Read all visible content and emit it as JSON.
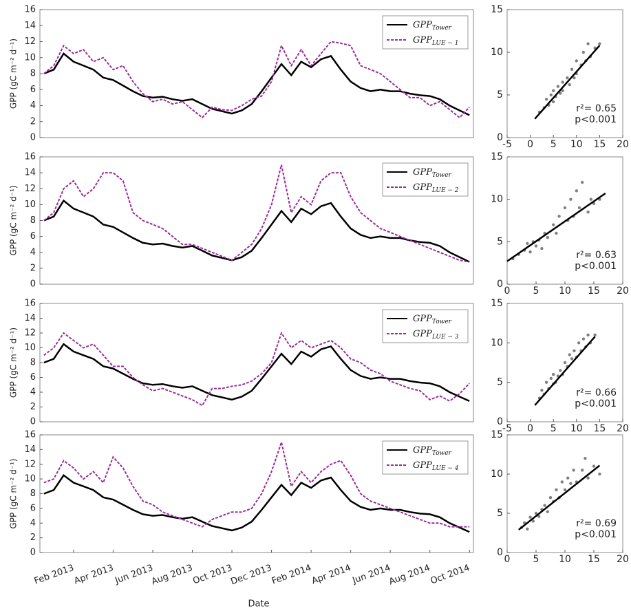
{
  "chart_data": [
    {
      "type": "line",
      "ylabel": "GPP (gC m⁻² d⁻¹)",
      "x": [
        -0.5,
        0,
        0.5,
        1,
        1.5,
        2,
        2.5,
        3,
        3.5,
        4,
        4.5,
        5,
        5.5,
        6,
        6.5,
        7,
        7.5,
        8,
        8.5,
        9,
        9.5,
        10,
        10.5,
        11,
        11.5,
        12,
        12.5,
        13,
        13.5,
        14,
        14.5,
        15,
        15.5,
        16,
        16.5,
        17,
        17.5,
        18,
        18.5,
        19,
        19.5,
        20,
        20.5,
        21
      ],
      "xlim": [
        -0.7,
        21.2
      ],
      "ylim": [
        0,
        16
      ],
      "yticks": [
        0,
        2,
        4,
        6,
        8,
        10,
        12,
        14,
        16
      ],
      "series": [
        {
          "name": "GPP",
          "name_sub": "Tower",
          "color": "#000000",
          "style": "solid",
          "values": [
            8,
            8.5,
            10.5,
            9.5,
            9,
            8.5,
            7.5,
            7.2,
            6.5,
            5.8,
            5.2,
            5,
            5.1,
            4.8,
            4.6,
            4.8,
            4.2,
            3.6,
            3.3,
            3,
            3.4,
            4.2,
            5.8,
            7.5,
            9.2,
            7.8,
            9.5,
            8.8,
            9.8,
            10.2,
            8.5,
            7,
            6.2,
            5.8,
            6,
            5.8,
            5.8,
            5.5,
            5.3,
            5.2,
            4.8,
            4,
            3.4,
            2.8
          ]
        },
        {
          "name": "GPP",
          "name_sub": "LUE − 1",
          "color": "#9b2a9b",
          "style": "dashed",
          "values": [
            8,
            9,
            11.5,
            10.5,
            11,
            9.5,
            10,
            8.5,
            9,
            7,
            5.5,
            4.5,
            4.8,
            4.2,
            4.5,
            3.5,
            2.5,
            3.8,
            3.5,
            3.4,
            4,
            4.8,
            5.2,
            7,
            11.5,
            9,
            11,
            9,
            10.5,
            12,
            11.8,
            11.5,
            9,
            8.5,
            8,
            7,
            6,
            5,
            5,
            4,
            4.5,
            3.5,
            2.5,
            3.8
          ]
        }
      ]
    },
    {
      "type": "scatter",
      "xlim": [
        -5,
        20
      ],
      "ylim": [
        0,
        15
      ],
      "xticks": [
        -5,
        0,
        5,
        10,
        15,
        20
      ],
      "yticks": [
        0,
        5,
        10,
        15
      ],
      "color": "#808080",
      "x": [
        2,
        3,
        3.5,
        4,
        4.5,
        5,
        5,
        5.5,
        6,
        6.5,
        7,
        7,
        8,
        8.5,
        9,
        9.5,
        10,
        10,
        11,
        11.5,
        12,
        12.5,
        13,
        14,
        15
      ],
      "y": [
        3,
        3.5,
        4.5,
        3.8,
        5,
        4.2,
        5.5,
        4.8,
        6,
        5.2,
        6.5,
        5.5,
        7,
        6.2,
        8,
        7,
        9,
        7.5,
        8.5,
        10,
        9,
        11,
        9.5,
        10.5,
        11
      ],
      "fit_line": {
        "x": [
          1,
          15
        ],
        "y": [
          2.2,
          10.8
        ]
      },
      "annotations": [
        "r²= 0.65",
        "p<0.001"
      ]
    },
    {
      "type": "line",
      "ylabel": "GPP (gC m⁻² d⁻¹)",
      "x": [
        -0.5,
        0,
        0.5,
        1,
        1.5,
        2,
        2.5,
        3,
        3.5,
        4,
        4.5,
        5,
        5.5,
        6,
        6.5,
        7,
        7.5,
        8,
        8.5,
        9,
        9.5,
        10,
        10.5,
        11,
        11.5,
        12,
        12.5,
        13,
        13.5,
        14,
        14.5,
        15,
        15.5,
        16,
        16.5,
        17,
        17.5,
        18,
        18.5,
        19,
        19.5,
        20,
        20.5,
        21
      ],
      "xlim": [
        -0.7,
        21.2
      ],
      "ylim": [
        0,
        16
      ],
      "yticks": [
        0,
        2,
        4,
        6,
        8,
        10,
        12,
        14,
        16
      ],
      "series": [
        {
          "name": "GPP",
          "name_sub": "Tower",
          "color": "#000000",
          "style": "solid",
          "values": [
            8,
            8.5,
            10.5,
            9.5,
            9,
            8.5,
            7.5,
            7.2,
            6.5,
            5.8,
            5.2,
            5,
            5.1,
            4.8,
            4.6,
            4.8,
            4.2,
            3.6,
            3.3,
            3,
            3.4,
            4.2,
            5.8,
            7.5,
            9.2,
            7.8,
            9.5,
            8.8,
            9.8,
            10.2,
            8.5,
            7,
            6.2,
            5.8,
            6,
            5.8,
            5.8,
            5.5,
            5.3,
            5.2,
            4.8,
            4,
            3.4,
            2.8
          ]
        },
        {
          "name": "GPP",
          "name_sub": "LUE − 2",
          "color": "#9b2a9b",
          "style": "dashed",
          "values": [
            8,
            9,
            12,
            13,
            11,
            12,
            14,
            14,
            13,
            9,
            8,
            7.5,
            7,
            6,
            5,
            5,
            4.5,
            4,
            3.5,
            3,
            4,
            5,
            7,
            10,
            15,
            9,
            11,
            10,
            13,
            14,
            14,
            11,
            9,
            8,
            7,
            6.5,
            6,
            5.5,
            5,
            4.5,
            4,
            3.5,
            3,
            2.8
          ]
        }
      ]
    },
    {
      "type": "scatter",
      "xlim": [
        0,
        20
      ],
      "ylim": [
        0,
        15
      ],
      "xticks": [
        0,
        5,
        10,
        15,
        20
      ],
      "yticks": [
        0,
        5,
        10,
        15
      ],
      "color": "#808080",
      "x": [
        1,
        2,
        3,
        3.5,
        4,
        4.5,
        5,
        5.5,
        6,
        6.5,
        7,
        8,
        8.5,
        9,
        10,
        10.5,
        11,
        11.5,
        12,
        12.5,
        13,
        14,
        14.5,
        15,
        16
      ],
      "y": [
        3,
        3.5,
        4,
        4.8,
        3.8,
        5,
        4.5,
        5.2,
        4.2,
        6,
        5.5,
        7,
        6,
        8,
        9,
        7.5,
        10,
        8,
        11,
        9,
        12,
        8.5,
        10,
        9.5,
        10
      ],
      "fit_line": {
        "x": [
          0,
          17
        ],
        "y": [
          2.7,
          10.7
        ]
      },
      "annotations": [
        "r²= 0.63",
        "p<0.001"
      ]
    },
    {
      "type": "line",
      "ylabel": "GPP (gC m⁻² d⁻¹)",
      "x": [
        -0.5,
        0,
        0.5,
        1,
        1.5,
        2,
        2.5,
        3,
        3.5,
        4,
        4.5,
        5,
        5.5,
        6,
        6.5,
        7,
        7.5,
        8,
        8.5,
        9,
        9.5,
        10,
        10.5,
        11,
        11.5,
        12,
        12.5,
        13,
        13.5,
        14,
        14.5,
        15,
        15.5,
        16,
        16.5,
        17,
        17.5,
        18,
        18.5,
        19,
        19.5,
        20,
        20.5,
        21
      ],
      "xlim": [
        -0.7,
        21.2
      ],
      "ylim": [
        0,
        16
      ],
      "yticks": [
        0,
        2,
        4,
        6,
        8,
        10,
        12,
        14,
        16
      ],
      "series": [
        {
          "name": "GPP",
          "name_sub": "Tower",
          "color": "#000000",
          "style": "solid",
          "values": [
            8,
            8.5,
            10.5,
            9.5,
            9,
            8.5,
            7.5,
            7.2,
            6.5,
            5.8,
            5.2,
            5,
            5.1,
            4.8,
            4.6,
            4.8,
            4.2,
            3.6,
            3.3,
            3,
            3.4,
            4.2,
            5.8,
            7.5,
            9.2,
            7.8,
            9.5,
            8.8,
            9.8,
            10.2,
            8.5,
            7,
            6.2,
            5.8,
            6,
            5.8,
            5.8,
            5.5,
            5.3,
            5.2,
            4.8,
            4,
            3.4,
            2.8
          ]
        },
        {
          "name": "GPP",
          "name_sub": "LUE − 3",
          "color": "#9b2a9b",
          "style": "dashed",
          "values": [
            9,
            10,
            12,
            11,
            10,
            10.5,
            9,
            7.5,
            7.5,
            6,
            5,
            4.2,
            4.5,
            4,
            3.5,
            3,
            2.2,
            4.5,
            4.5,
            4.8,
            5,
            5.5,
            6.5,
            8,
            12,
            10,
            11,
            10,
            10.5,
            11,
            10,
            8.5,
            8,
            7,
            6.5,
            5.5,
            5,
            4.5,
            4.2,
            3,
            3.5,
            2.8,
            3.8,
            5.2
          ]
        }
      ]
    },
    {
      "type": "scatter",
      "xlim": [
        -5,
        20
      ],
      "ylim": [
        0,
        15
      ],
      "xticks": [
        -5,
        0,
        5,
        10,
        15,
        20
      ],
      "yticks": [
        0,
        5,
        10,
        15
      ],
      "color": "#808080",
      "x": [
        2,
        2.5,
        3,
        3.5,
        4,
        4.5,
        5,
        5,
        5.5,
        6,
        6.5,
        7,
        7.5,
        8,
        8.5,
        9,
        9.5,
        10,
        10.5,
        11,
        11.5,
        12,
        12.5,
        13,
        14
      ],
      "y": [
        3,
        4,
        3.5,
        5,
        4.2,
        5.5,
        4.8,
        6,
        5,
        5.8,
        6.5,
        6,
        7.5,
        7,
        8.5,
        8,
        9,
        8.2,
        10,
        9,
        10.5,
        9.5,
        11,
        10,
        11
      ],
      "fit_line": {
        "x": [
          1,
          14
        ],
        "y": [
          2.1,
          10.8
        ]
      },
      "annotations": [
        "r²= 0.66",
        "p<0.001"
      ]
    },
    {
      "type": "line",
      "ylabel": "GPP (gC m⁻² d⁻¹)",
      "xlabel": "Date",
      "x": [
        -0.5,
        0,
        0.5,
        1,
        1.5,
        2,
        2.5,
        3,
        3.5,
        4,
        4.5,
        5,
        5.5,
        6,
        6.5,
        7,
        7.5,
        8,
        8.5,
        9,
        9.5,
        10,
        10.5,
        11,
        11.5,
        12,
        12.5,
        13,
        13.5,
        14,
        14.5,
        15,
        15.5,
        16,
        16.5,
        17,
        17.5,
        18,
        18.5,
        19,
        19.5,
        20,
        20.5,
        21
      ],
      "xlim": [
        -0.7,
        21.2
      ],
      "ylim": [
        0,
        16
      ],
      "yticks": [
        0,
        2,
        4,
        6,
        8,
        10,
        12,
        14,
        16
      ],
      "xticks": [
        {
          "value": 1,
          "label": "Feb 2013"
        },
        {
          "value": 3,
          "label": "Apr 2013"
        },
        {
          "value": 5,
          "label": "Jun 2013"
        },
        {
          "value": 7,
          "label": "Aug 2013"
        },
        {
          "value": 9,
          "label": "Oct 2013"
        },
        {
          "value": 11,
          "label": "Dec 2013"
        },
        {
          "value": 13,
          "label": "Feb 2014"
        },
        {
          "value": 15,
          "label": "Apr 2014"
        },
        {
          "value": 17,
          "label": "Jun 2014"
        },
        {
          "value": 19,
          "label": "Aug 2014"
        },
        {
          "value": 21,
          "label": "Oct 2014"
        }
      ],
      "series": [
        {
          "name": "GPP",
          "name_sub": "Tower",
          "color": "#000000",
          "style": "solid",
          "values": [
            8,
            8.5,
            10.5,
            9.5,
            9,
            8.5,
            7.5,
            7.2,
            6.5,
            5.8,
            5.2,
            5,
            5.1,
            4.8,
            4.6,
            4.8,
            4.2,
            3.6,
            3.3,
            3,
            3.4,
            4.2,
            5.8,
            7.5,
            9.2,
            7.8,
            9.5,
            8.8,
            9.8,
            10.2,
            8.5,
            7,
            6.2,
            5.8,
            6,
            5.8,
            5.8,
            5.5,
            5.3,
            5.2,
            4.8,
            4,
            3.4,
            2.8
          ]
        },
        {
          "name": "GPP",
          "name_sub": "LUE − 4",
          "color": "#9b2a9b",
          "style": "dashed",
          "values": [
            9.5,
            10,
            12.5,
            11.5,
            10,
            11,
            9.5,
            13,
            11.5,
            9,
            7,
            6.5,
            5.5,
            5,
            4.5,
            4,
            3.5,
            4.5,
            5,
            5.5,
            5.5,
            6,
            8,
            11,
            15,
            9,
            11,
            9.5,
            11,
            12,
            12.5,
            10.5,
            8,
            7,
            6.5,
            6,
            5.5,
            5,
            4.5,
            4,
            4,
            3.5,
            3.5,
            3.5
          ]
        }
      ]
    },
    {
      "type": "scatter",
      "xlim": [
        0,
        20
      ],
      "ylim": [
        0,
        15
      ],
      "xticks": [
        0,
        5,
        10,
        15,
        20
      ],
      "yticks": [
        0,
        5,
        10,
        15
      ],
      "color": "#808080",
      "x": [
        2.5,
        3,
        3.5,
        4,
        4.5,
        5,
        5.5,
        6,
        6.5,
        7,
        7.5,
        8,
        8.5,
        9,
        9.5,
        10,
        10.5,
        11,
        11.5,
        12,
        13,
        13.5,
        14,
        15,
        16
      ],
      "y": [
        3.2,
        3.8,
        3,
        4.5,
        4,
        5,
        4.6,
        5.5,
        6,
        5.2,
        7,
        6.5,
        8,
        7,
        9,
        8,
        9.5,
        8.8,
        10.5,
        9,
        10.5,
        12,
        9.5,
        11,
        10
      ],
      "fit_line": {
        "x": [
          2,
          16
        ],
        "y": [
          2.9,
          11.1
        ]
      },
      "annotations": [
        "r²= 0.69",
        "p<0.001"
      ]
    }
  ]
}
